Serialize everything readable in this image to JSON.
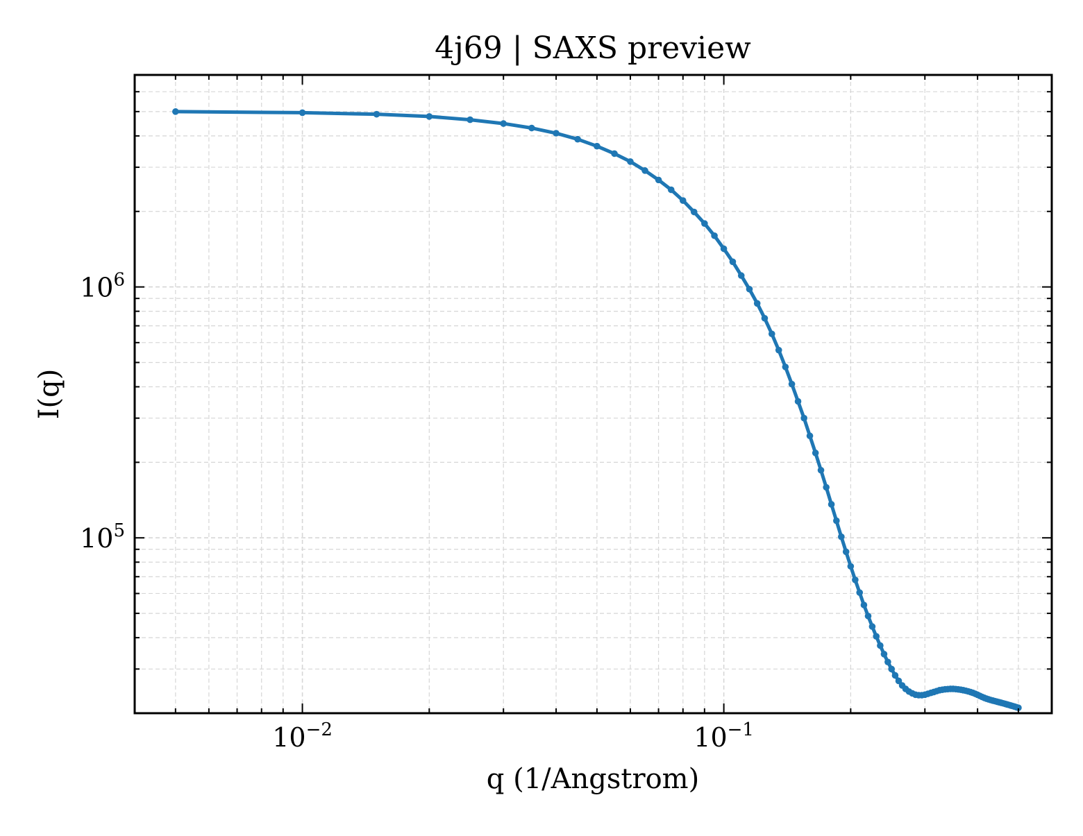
{
  "chart_data": {
    "type": "line",
    "title": "4j69 | SAXS preview",
    "xlabel": "q (1/Angstrom)",
    "ylabel": "I(q)",
    "xscale": "log",
    "yscale": "log",
    "xlim": [
      0.004,
      0.6
    ],
    "ylim": [
      20000,
      7000000
    ],
    "grid": true,
    "legend": "none",
    "x_ticks": [
      {
        "value": 0.01,
        "base": "10",
        "exp": "−2"
      },
      {
        "value": 0.1,
        "base": "10",
        "exp": "−1"
      }
    ],
    "y_ticks": [
      {
        "value": 100000,
        "base": "10",
        "exp": "5"
      },
      {
        "value": 1000000,
        "base": "10",
        "exp": "6"
      }
    ],
    "series_color": "#1f77b4",
    "series": [
      {
        "x": [
          0.005,
          0.01,
          0.015,
          0.02,
          0.025,
          0.03,
          0.035,
          0.04,
          0.045,
          0.05,
          0.055,
          0.06,
          0.065,
          0.07,
          0.075,
          0.08,
          0.085,
          0.09,
          0.095,
          0.1,
          0.105,
          0.11,
          0.115,
          0.12,
          0.125,
          0.13,
          0.135,
          0.14,
          0.145,
          0.15,
          0.155,
          0.16,
          0.165,
          0.17,
          0.175,
          0.18,
          0.185,
          0.19,
          0.195,
          0.2,
          0.205,
          0.21,
          0.215,
          0.22,
          0.225,
          0.23,
          0.235,
          0.24,
          0.245,
          0.25,
          0.255,
          0.26,
          0.265,
          0.27,
          0.275,
          0.28,
          0.285,
          0.29,
          0.295,
          0.3,
          0.305,
          0.31,
          0.315,
          0.32,
          0.325,
          0.33,
          0.335,
          0.34,
          0.345,
          0.35,
          0.355,
          0.36,
          0.365,
          0.37,
          0.375,
          0.38,
          0.385,
          0.39,
          0.395,
          0.4,
          0.405,
          0.41,
          0.415,
          0.42,
          0.425,
          0.43,
          0.435,
          0.44,
          0.445,
          0.45,
          0.455,
          0.46,
          0.465,
          0.47,
          0.475,
          0.48,
          0.485,
          0.49,
          0.495,
          0.5
        ],
        "y": [
          5000000,
          4950000,
          4880000,
          4780000,
          4640000,
          4480000,
          4300000,
          4100000,
          3880000,
          3640000,
          3400000,
          3160000,
          2910000,
          2670000,
          2440000,
          2210000,
          1990000,
          1790000,
          1600000,
          1420000,
          1260000,
          1110000,
          980000,
          860000,
          750000,
          650000,
          560000,
          480000,
          410000,
          350000,
          300000,
          255000,
          218000,
          186000,
          159000,
          136000,
          117000,
          101000,
          88000,
          77000,
          68000,
          60500,
          54000,
          48800,
          44300,
          40500,
          37200,
          34400,
          32000,
          30000,
          28300,
          26900,
          25800,
          25000,
          24400,
          24000,
          23700,
          23600,
          23600,
          23700,
          23900,
          24100,
          24300,
          24500,
          24700,
          24800,
          24900,
          24950,
          25000,
          25000,
          24950,
          24880,
          24800,
          24700,
          24580,
          24440,
          24280,
          24100,
          23900,
          23680,
          23450,
          23230,
          23030,
          22850,
          22700,
          22570,
          22450,
          22340,
          22230,
          22120,
          22010,
          21900,
          21790,
          21680,
          21570,
          21460,
          21350,
          21240,
          21130,
          21020
        ]
      }
    ]
  }
}
